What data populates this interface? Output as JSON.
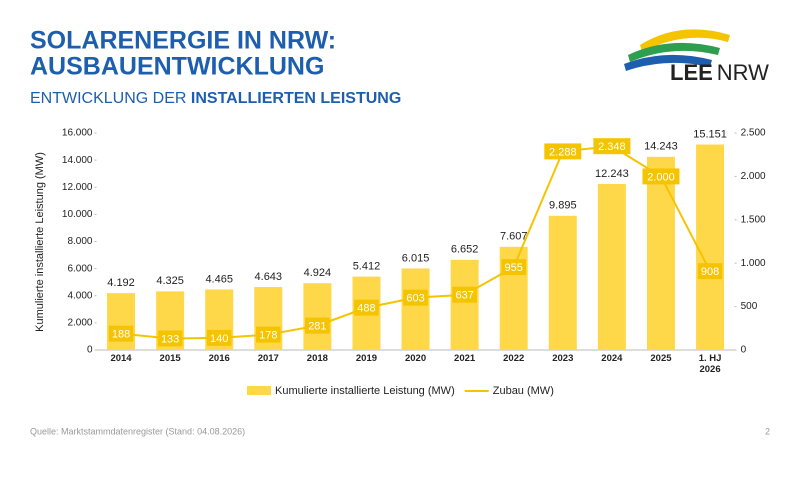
{
  "header": {
    "title_lines": [
      "SOLARENERGIE IN NRW:",
      "AUSBAUENTWICKLUNG"
    ],
    "subtitle_plain": "ENTWICKLUNG DER ",
    "subtitle_bold": "INSTALLIERTEN LEISTUNG"
  },
  "logo": {
    "part1": "LEE",
    "part2": "NRW"
  },
  "footer": {
    "source": "Quelle: Marktstammdatenregister (Stand: 04.08.2026)",
    "page": "2"
  },
  "chart_data": {
    "type": "bar",
    "categories": [
      "2014",
      "2015",
      "2016",
      "2017",
      "2018",
      "2019",
      "2020",
      "2021",
      "2022",
      "2023",
      "2024",
      "2025",
      "1. HJ 2026"
    ],
    "y_label": "Kumulierte installierte Leistung (MW)",
    "series": [
      {
        "name": "Kumulierte installierte Leistung (MW)",
        "type": "bar",
        "color": "#ffd84a",
        "values": [
          4192,
          4325,
          4465,
          4643,
          4924,
          5412,
          6015,
          6652,
          7607,
          9895,
          12243,
          14243,
          15151
        ],
        "value_labels": [
          "4.192",
          "4.325",
          "4.465",
          "4.643",
          "4.924",
          "5.412",
          "6.015",
          "6.652",
          "7.607",
          "9.895",
          "12.243",
          "14.243",
          "15.151"
        ]
      },
      {
        "name": "Zubau (MW)",
        "type": "line",
        "axis": "y2",
        "color": "#f5c400",
        "values": [
          188,
          133,
          140,
          178,
          281,
          488,
          603,
          637,
          955,
          2288,
          2348,
          2000,
          908
        ],
        "value_labels": [
          "188",
          "133",
          "140",
          "178",
          "281",
          "488",
          "603",
          "637",
          "955",
          "2.288",
          "2.348",
          "2.000",
          "908"
        ]
      }
    ],
    "ylim": [
      0,
      16000
    ],
    "yticks": [
      0,
      {
        "value": 2000,
        "label": "2.000"
      },
      {
        "value": 4000,
        "label": "4.000"
      },
      {
        "value": 6000,
        "label": "6.000"
      },
      {
        "value": 8000,
        "label": "8.000"
      },
      {
        "value": 10000,
        "label": "10.000"
      },
      {
        "value": 12000,
        "label": "12.000"
      },
      {
        "value": 14000,
        "label": "14.000"
      },
      {
        "value": 16000,
        "label": "16.000"
      }
    ],
    "y2lim": [
      0,
      2500
    ],
    "y2ticks": [
      0,
      500,
      {
        "value": 1000,
        "label": "1.000"
      },
      {
        "value": 1500,
        "label": "1.500"
      },
      {
        "value": 2000,
        "label": "2.000"
      },
      {
        "value": 2500,
        "label": "2.500"
      }
    ],
    "legend": "bottom"
  }
}
